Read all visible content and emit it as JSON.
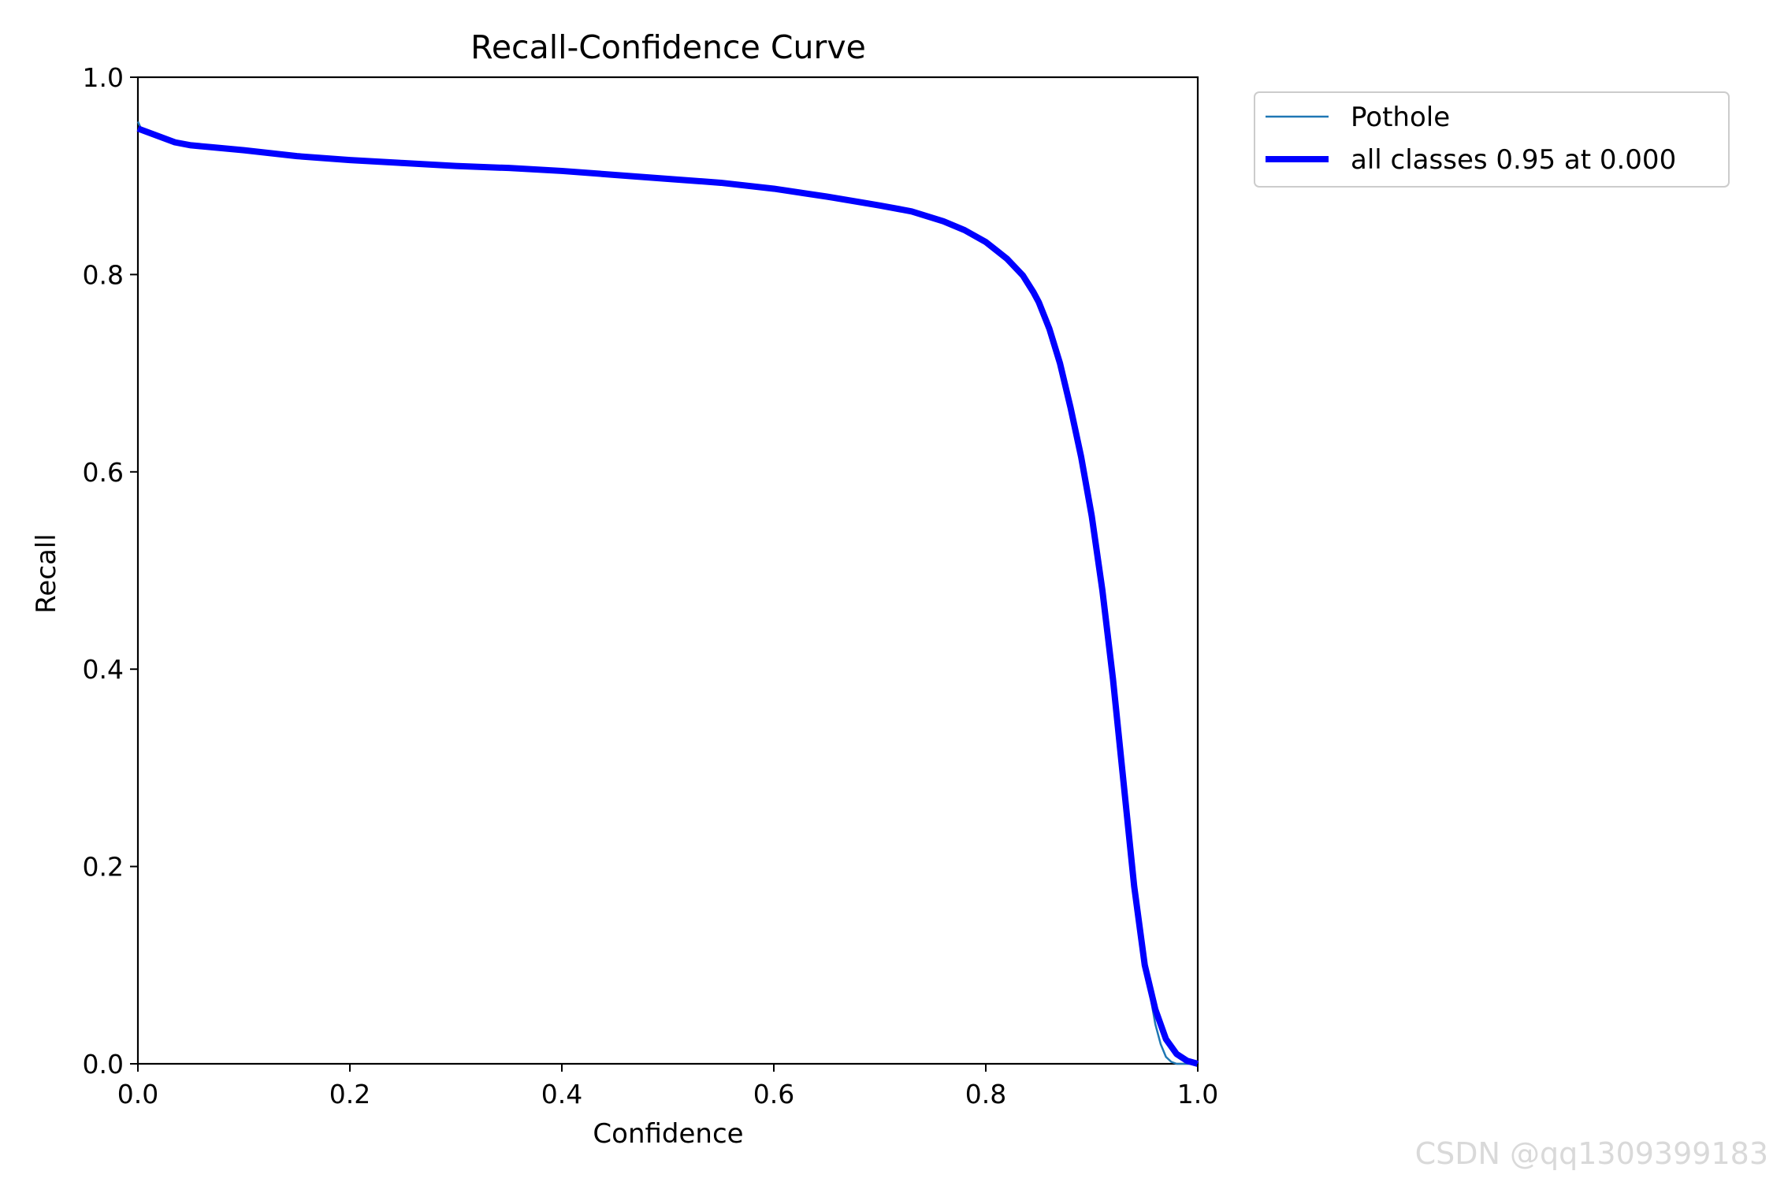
{
  "chart_data": {
    "type": "line",
    "title": "Recall-Confidence Curve",
    "xlabel": "Confidence",
    "ylabel": "Recall",
    "xlim": [
      0.0,
      1.0
    ],
    "ylim": [
      0.0,
      1.0
    ],
    "x_ticks": [
      "0.0",
      "0.2",
      "0.4",
      "0.6",
      "0.8",
      "1.0"
    ],
    "y_ticks": [
      "0.0",
      "0.2",
      "0.4",
      "0.6",
      "0.8",
      "1.0"
    ],
    "grid": false,
    "legend_position": "outside-top-right",
    "series": [
      {
        "name": "Pothole",
        "color": "#1f77b4",
        "style": "thin",
        "points": [
          [
            0.0,
            0.955
          ],
          [
            0.003,
            0.948
          ],
          [
            0.01,
            0.944
          ],
          [
            0.02,
            0.94
          ],
          [
            0.035,
            0.934
          ],
          [
            0.05,
            0.931
          ],
          [
            0.07,
            0.929
          ],
          [
            0.1,
            0.926
          ],
          [
            0.15,
            0.92
          ],
          [
            0.2,
            0.916
          ],
          [
            0.25,
            0.913
          ],
          [
            0.3,
            0.91
          ],
          [
            0.35,
            0.908
          ],
          [
            0.4,
            0.905
          ],
          [
            0.45,
            0.901
          ],
          [
            0.5,
            0.897
          ],
          [
            0.55,
            0.893
          ],
          [
            0.6,
            0.887
          ],
          [
            0.65,
            0.879
          ],
          [
            0.7,
            0.87
          ],
          [
            0.73,
            0.864
          ],
          [
            0.76,
            0.854
          ],
          [
            0.78,
            0.845
          ],
          [
            0.8,
            0.833
          ],
          [
            0.82,
            0.816
          ],
          [
            0.835,
            0.799
          ],
          [
            0.845,
            0.782
          ],
          [
            0.85,
            0.775
          ],
          [
            0.86,
            0.745
          ],
          [
            0.87,
            0.71
          ],
          [
            0.88,
            0.665
          ],
          [
            0.89,
            0.615
          ],
          [
            0.9,
            0.555
          ],
          [
            0.91,
            0.48
          ],
          [
            0.92,
            0.39
          ],
          [
            0.93,
            0.285
          ],
          [
            0.94,
            0.18
          ],
          [
            0.95,
            0.1
          ],
          [
            0.955,
            0.07
          ],
          [
            0.96,
            0.04
          ],
          [
            0.965,
            0.02
          ],
          [
            0.97,
            0.007
          ],
          [
            0.975,
            0.002
          ],
          [
            0.98,
            0.0
          ],
          [
            1.0,
            0.0
          ]
        ]
      },
      {
        "name": "all classes 0.95 at 0.000",
        "color": "#0000ff",
        "style": "thick",
        "points": [
          [
            0.0,
            0.948
          ],
          [
            0.01,
            0.944
          ],
          [
            0.02,
            0.94
          ],
          [
            0.035,
            0.934
          ],
          [
            0.05,
            0.931
          ],
          [
            0.07,
            0.929
          ],
          [
            0.1,
            0.926
          ],
          [
            0.15,
            0.92
          ],
          [
            0.2,
            0.916
          ],
          [
            0.25,
            0.913
          ],
          [
            0.3,
            0.91
          ],
          [
            0.35,
            0.908
          ],
          [
            0.4,
            0.905
          ],
          [
            0.45,
            0.901
          ],
          [
            0.5,
            0.897
          ],
          [
            0.55,
            0.893
          ],
          [
            0.6,
            0.887
          ],
          [
            0.65,
            0.879
          ],
          [
            0.7,
            0.87
          ],
          [
            0.73,
            0.864
          ],
          [
            0.76,
            0.854
          ],
          [
            0.78,
            0.845
          ],
          [
            0.8,
            0.833
          ],
          [
            0.82,
            0.816
          ],
          [
            0.835,
            0.799
          ],
          [
            0.845,
            0.782
          ],
          [
            0.85,
            0.772
          ],
          [
            0.86,
            0.745
          ],
          [
            0.87,
            0.71
          ],
          [
            0.88,
            0.665
          ],
          [
            0.89,
            0.615
          ],
          [
            0.9,
            0.555
          ],
          [
            0.91,
            0.48
          ],
          [
            0.92,
            0.39
          ],
          [
            0.93,
            0.285
          ],
          [
            0.94,
            0.18
          ],
          [
            0.95,
            0.1
          ],
          [
            0.96,
            0.055
          ],
          [
            0.97,
            0.025
          ],
          [
            0.98,
            0.01
          ],
          [
            0.99,
            0.003
          ],
          [
            1.0,
            0.0
          ]
        ]
      }
    ]
  },
  "watermark": "CSDN @qq1309399183"
}
